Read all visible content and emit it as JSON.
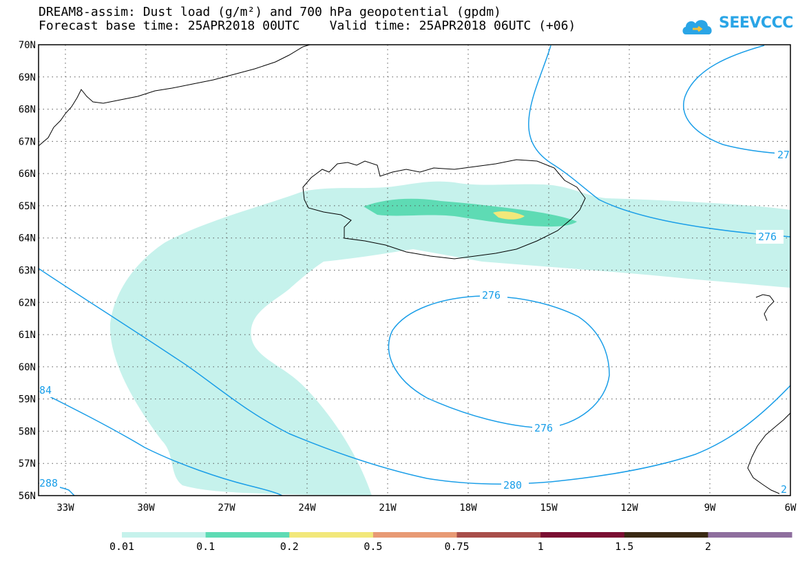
{
  "title": {
    "line1": "DREAM8-assim: Dust load (g/m²) and 700 hPa geopotential (gpdm)",
    "line2": "Forecast base time: 25APR2018 00UTC    Valid time: 25APR2018 06UTC (+06)"
  },
  "logo": {
    "text": "SEEVCCC",
    "icon": "cloud-icon"
  },
  "map": {
    "region": "North Atlantic / Iceland",
    "lat_range": [
      "56N",
      "70N"
    ],
    "lon_range": [
      "34W",
      "6W"
    ],
    "lat_labels": [
      "70N",
      "69N",
      "68N",
      "67N",
      "66N",
      "65N",
      "64N",
      "63N",
      "62N",
      "61N",
      "60N",
      "59N",
      "58N",
      "57N",
      "56N"
    ],
    "lon_labels": [
      "33W",
      "30W",
      "27W",
      "24W",
      "21W",
      "18W",
      "15W",
      "12W",
      "9W",
      "6W"
    ],
    "gridlines": "dotted",
    "contour_color": "#1a9ee8",
    "contour_labels": [
      "27",
      "276",
      "276",
      "276",
      "280",
      "84",
      "288",
      "2"
    ]
  },
  "legend": {
    "colors": [
      "#c6f2ec",
      "#5edbb4",
      "#f2e87a",
      "#e89a74",
      "#a84e4a",
      "#7a0e32",
      "#3a2a14",
      "#8e6e9e"
    ],
    "labels": [
      "0.01",
      "0.1",
      "0.2",
      "0.5",
      "0.75",
      "1",
      "1.5",
      "2"
    ]
  }
}
